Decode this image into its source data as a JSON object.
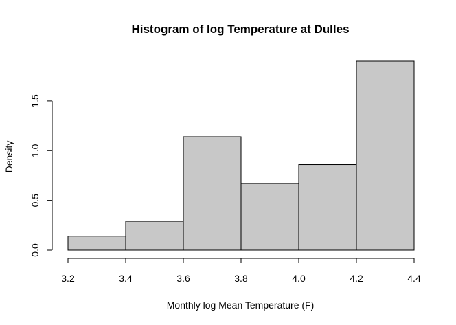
{
  "chart_data": {
    "type": "bar",
    "title": "Histogram of log Temperature at Dulles",
    "xlabel": "Monthly log Mean Temperature (F)",
    "ylabel": "Density",
    "bins": [
      {
        "from": 3.2,
        "to": 3.4,
        "density": 0.14
      },
      {
        "from": 3.4,
        "to": 3.6,
        "density": 0.29
      },
      {
        "from": 3.6,
        "to": 3.8,
        "density": 1.14
      },
      {
        "from": 3.8,
        "to": 4.0,
        "density": 0.67
      },
      {
        "from": 4.0,
        "to": 4.2,
        "density": 0.86
      },
      {
        "from": 4.2,
        "to": 4.4,
        "density": 1.9
      }
    ],
    "x_ticks": [
      3.2,
      3.4,
      3.6,
      3.8,
      4.0,
      4.2,
      4.4
    ],
    "x_tick_labels": [
      "3.2",
      "3.4",
      "3.6",
      "3.8",
      "4.0",
      "4.2",
      "4.4"
    ],
    "y_ticks": [
      0.0,
      0.5,
      1.0,
      1.5
    ],
    "y_tick_labels": [
      "0.0",
      "0.5",
      "1.0",
      "1.5"
    ],
    "xlim": [
      3.2,
      4.4
    ],
    "ylim": [
      0,
      1.9
    ],
    "grid": false,
    "legend": "none",
    "colors": {
      "bar_fill": "#c8c8c8",
      "bar_stroke": "#000000"
    }
  }
}
